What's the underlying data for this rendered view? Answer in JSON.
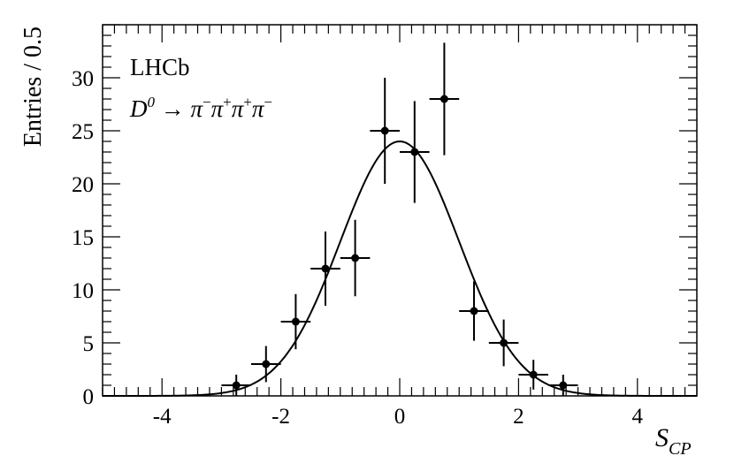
{
  "chart_data": {
    "type": "scatter",
    "ylabel": "Entries / 0.5",
    "xlabel_main": "S",
    "xlabel_sub": "CP",
    "annotations": {
      "experiment": "LHCb",
      "decay": {
        "base": "D",
        "base_sup": "0",
        "arrow": " → ",
        "p1": "π",
        "p1_sup": "−",
        "p2": "π",
        "p2_sup": "+",
        "p3": "π",
        "p3_sup": "+",
        "p4": "π",
        "p4_sup": "−"
      }
    },
    "xlim": [
      -5,
      5
    ],
    "ylim": [
      0,
      35
    ],
    "x_ticks": [
      -4,
      -2,
      0,
      2,
      4
    ],
    "x_tick_labels": [
      "-4",
      "-2",
      "0",
      "2",
      "4"
    ],
    "y_ticks": [
      0,
      5,
      10,
      15,
      20,
      25,
      30
    ],
    "y_tick_labels": [
      "0",
      "5",
      "10",
      "15",
      "20",
      "25",
      "30"
    ],
    "grid": false,
    "series": [
      {
        "type": "errorbar",
        "x_err": 0.25,
        "points": [
          {
            "x": -2.75,
            "y": 1,
            "y_err": 1.0
          },
          {
            "x": -2.25,
            "y": 3,
            "y_err": 1.7
          },
          {
            "x": -1.75,
            "y": 7,
            "y_err": 2.6
          },
          {
            "x": -1.25,
            "y": 12,
            "y_err": 3.5
          },
          {
            "x": -0.75,
            "y": 13,
            "y_err": 3.6
          },
          {
            "x": -0.25,
            "y": 25,
            "y_err": 5.0
          },
          {
            "x": 0.25,
            "y": 23,
            "y_err": 4.8
          },
          {
            "x": 0.75,
            "y": 28,
            "y_err": 5.3
          },
          {
            "x": 1.25,
            "y": 8,
            "y_err": 2.8
          },
          {
            "x": 1.75,
            "y": 5,
            "y_err": 2.2
          },
          {
            "x": 2.25,
            "y": 2,
            "y_err": 1.4
          },
          {
            "x": 2.75,
            "y": 1,
            "y_err": 1.0
          }
        ]
      },
      {
        "type": "curve",
        "function": "gaussian",
        "amplitude": 24,
        "mean": 0,
        "sigma": 1
      }
    ]
  }
}
